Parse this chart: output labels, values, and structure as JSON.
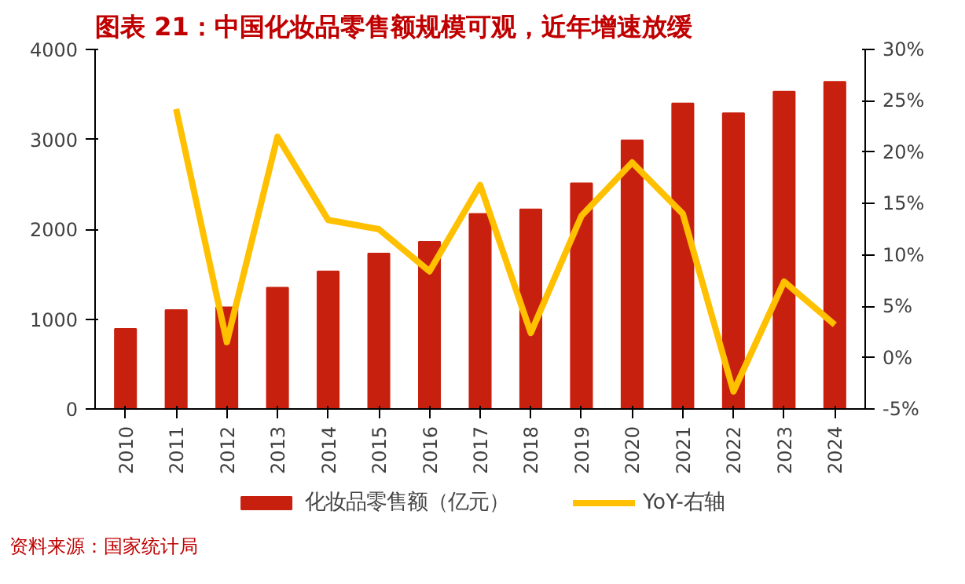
{
  "chart_data": {
    "type": "bar",
    "title": "图表 21：中国化妆品零售额规模可观，近年增速放缓",
    "categories": [
      "2010",
      "2011",
      "2012",
      "2013",
      "2014",
      "2015",
      "2016",
      "2017",
      "2018",
      "2019",
      "2020",
      "2021",
      "2022",
      "2023",
      "2024"
    ],
    "series": [
      {
        "name": "化妆品零售额（亿元）",
        "color": "#c8200e",
        "values": [
          890,
          1100,
          1130,
          1350,
          1530,
          1730,
          1860,
          2170,
          2220,
          2510,
          2990,
          3400,
          3290,
          3530,
          3640
        ]
      },
      {
        "name": "YoY-右轴",
        "type": "line",
        "axis": "y2",
        "color": "#ffc000",
        "values": [
          null,
          24.2,
          1.5,
          21.5,
          13.4,
          12.5,
          8.4,
          16.8,
          2.4,
          13.8,
          19.0,
          14.0,
          -3.3,
          7.4,
          3.2
        ]
      }
    ],
    "ylim": [
      0,
      4000
    ],
    "yticks": [
      0,
      1000,
      2000,
      3000,
      4000
    ],
    "y2lim": [
      -5,
      30
    ],
    "y2ticks": [
      {
        "value": -5,
        "label": "-5%"
      },
      {
        "value": 0,
        "label": "0%"
      },
      {
        "value": 5,
        "label": "5%"
      },
      {
        "value": 10,
        "label": "10%"
      },
      {
        "value": 15,
        "label": "15%"
      },
      {
        "value": 20,
        "label": "20%"
      },
      {
        "value": 25,
        "label": "25%"
      },
      {
        "value": 30,
        "label": "30%"
      }
    ],
    "grid": false,
    "legend": "bottom",
    "line_style": "solid",
    "annotations": [
      "资料来源：国家统计局"
    ]
  }
}
